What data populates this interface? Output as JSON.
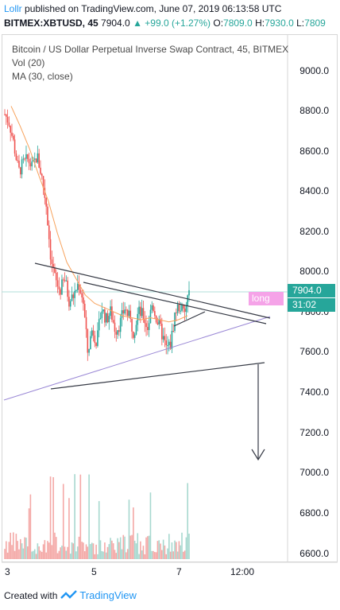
{
  "header": {
    "user": "Lollr",
    "published_text": "published on TradingView.com, June 07, 2019 06:13:58 UTC",
    "symbol": "BITMEX:XBTUSD, 45",
    "last": "7904.0",
    "change": "▲ +99.0 (+1.27%)",
    "o_label": "O:",
    "o_value": "7809.0",
    "h_label": "H:",
    "h_value": "7930.0",
    "l_label": "L:",
    "l_value": "7809"
  },
  "legend": {
    "title": "Bitcoin / US Dollar Perpetual Inverse Swap Contract, 45, BITMEX",
    "volume": "Vol (20)",
    "ma": "MA (30, close)"
  },
  "y_axis": [
    "9000.0",
    "8800.0",
    "8600.0",
    "8400.0",
    "8200.0",
    "8000.0",
    "7800.0",
    "7600.0",
    "7400.0",
    "7200.0",
    "7000.0",
    "6800.0",
    "6600.0"
  ],
  "x_axis": [
    "3",
    "5",
    "7",
    "12:00"
  ],
  "price_tags": {
    "current": "7904.0",
    "timer": "31:02",
    "drawing_label": "long"
  },
  "colors": {
    "up": "#26a69a",
    "down": "#ef5350",
    "volume_up": "#a7d8cf",
    "volume_down": "#f4a8a6",
    "ma": "#f7a25c",
    "trendline": "#363a45",
    "diagonal": "#9b89d6",
    "accent": "#2196f3"
  },
  "footer": {
    "created_with": "Created with",
    "brand": "TradingView"
  },
  "chart_data": {
    "type": "candlestick",
    "ylim": [
      6580,
      9150
    ],
    "time_labels": [
      "3",
      "5",
      "7",
      "12:00"
    ],
    "close_path": [
      8760,
      8720,
      8610,
      8480,
      8520,
      8540,
      8500,
      8560,
      8460,
      8320,
      8060,
      7950,
      7900,
      7960,
      7850,
      7880,
      7940,
      7860,
      7600,
      7720,
      7650,
      7820,
      7760,
      7800,
      7710,
      7740,
      7820,
      7770,
      7700,
      7800,
      7780,
      7720,
      7840,
      7760,
      7700,
      7620,
      7640,
      7800,
      7830,
      7780,
      7904
    ],
    "moving_average": [
      8800,
      8700,
      8590,
      8460,
      8340,
      8180,
      8040,
      7960,
      7880,
      7840,
      7820,
      7800,
      7780,
      7770,
      7760,
      7770,
      7760,
      7750,
      7760,
      7780
    ]
  }
}
